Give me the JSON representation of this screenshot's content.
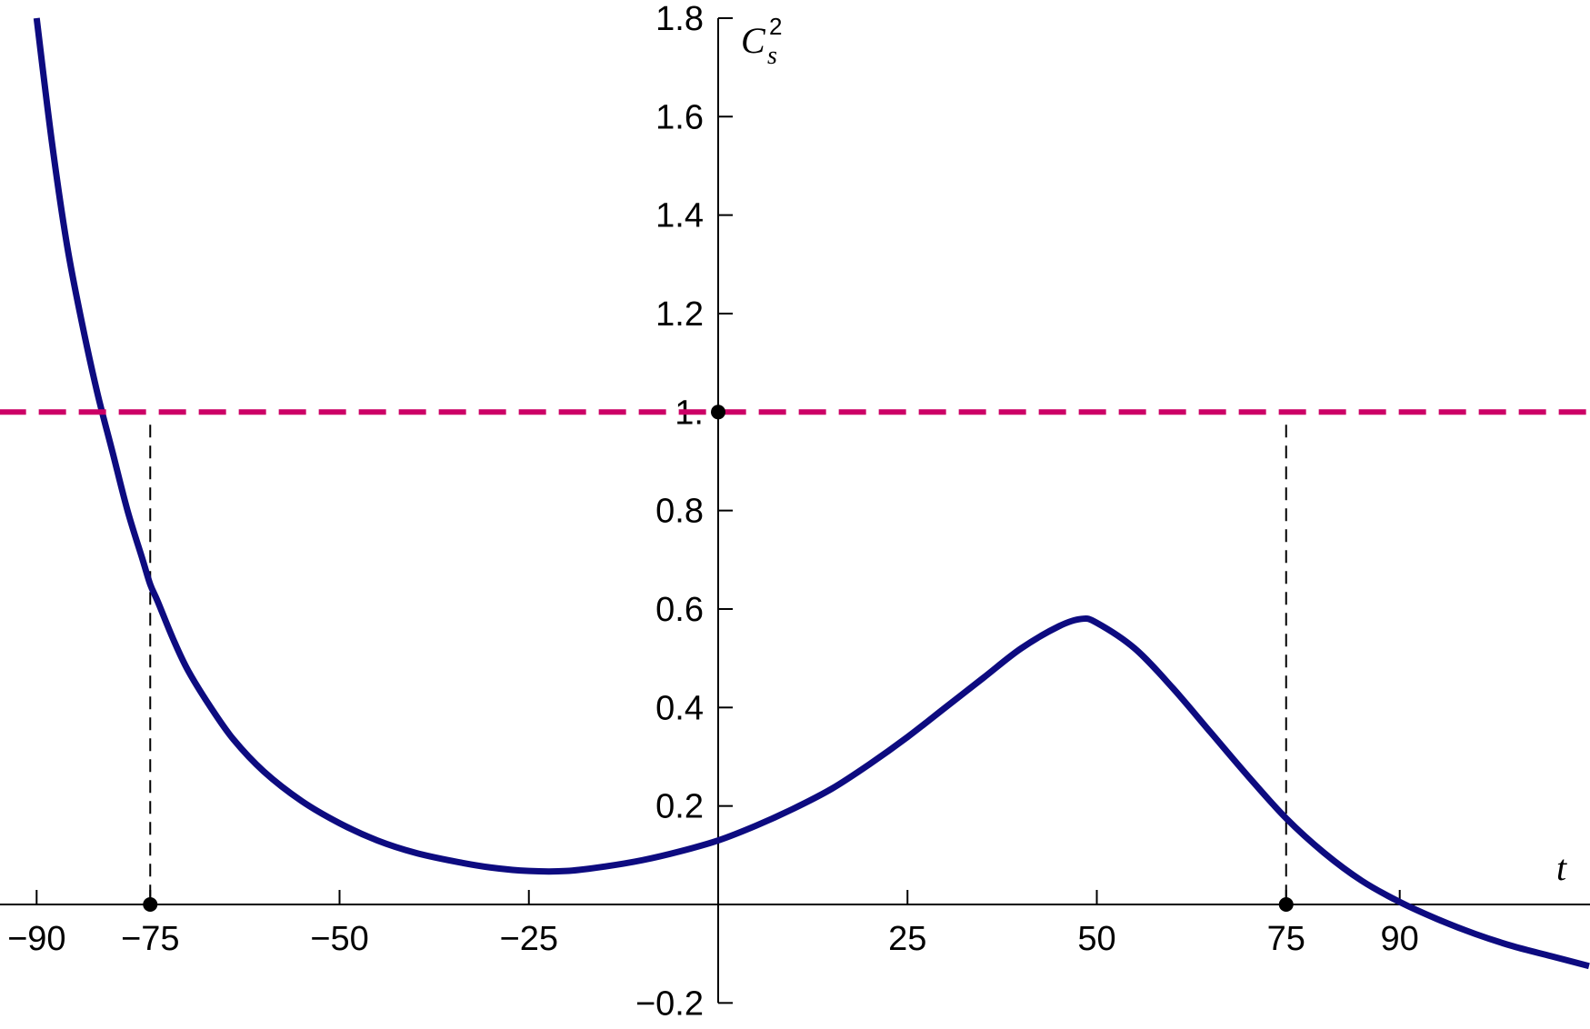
{
  "chart_data": {
    "type": "line",
    "xlabel": "t",
    "ylabel": {
      "base": "C",
      "sub": "s",
      "sup": "2"
    },
    "xlim": [
      -95,
      115
    ],
    "ylim": [
      -0.2,
      1.8
    ],
    "x_ticks": [
      {
        "value": -90,
        "label": "−90"
      },
      {
        "value": -75,
        "label": "−75"
      },
      {
        "value": -50,
        "label": "−50"
      },
      {
        "value": -25,
        "label": "−25"
      },
      {
        "value": 25,
        "label": "25"
      },
      {
        "value": 50,
        "label": "50"
      },
      {
        "value": 75,
        "label": "75"
      },
      {
        "value": 90,
        "label": "90"
      }
    ],
    "y_ticks": [
      {
        "value": -0.2,
        "label": "−0.2"
      },
      {
        "value": 0.2,
        "label": "0.2"
      },
      {
        "value": 0.4,
        "label": "0.4"
      },
      {
        "value": 0.6,
        "label": "0.6"
      },
      {
        "value": 0.8,
        "label": "0.8"
      },
      {
        "value": 1.0,
        "label": "1."
      },
      {
        "value": 1.2,
        "label": "1.2"
      },
      {
        "value": 1.4,
        "label": "1.4"
      },
      {
        "value": 1.6,
        "label": "1.6"
      },
      {
        "value": 1.8,
        "label": "1.8"
      }
    ],
    "series": [
      {
        "color": "#0d0b80",
        "x": [
          -90,
          -88,
          -86,
          -84,
          -82,
          -80,
          -78,
          -76,
          -75,
          -74,
          -72,
          -70,
          -67,
          -64,
          -60,
          -55,
          -50,
          -45,
          -40,
          -35,
          -30,
          -25,
          -20,
          -15,
          -10,
          -5,
          0,
          5,
          10,
          15,
          20,
          25,
          30,
          35,
          40,
          45,
          48,
          50,
          55,
          60,
          65,
          70,
          75,
          80,
          85,
          90,
          95,
          100,
          105,
          110,
          115
        ],
        "y": [
          1.8,
          1.55,
          1.34,
          1.18,
          1.04,
          0.92,
          0.8,
          0.7,
          0.65,
          0.615,
          0.54,
          0.475,
          0.4,
          0.335,
          0.27,
          0.21,
          0.165,
          0.13,
          0.105,
          0.088,
          0.075,
          0.068,
          0.068,
          0.077,
          0.09,
          0.108,
          0.13,
          0.16,
          0.195,
          0.235,
          0.285,
          0.34,
          0.4,
          0.46,
          0.52,
          0.565,
          0.58,
          0.572,
          0.52,
          0.44,
          0.35,
          0.26,
          0.175,
          0.105,
          0.048,
          0.005,
          -0.03,
          -0.06,
          -0.085,
          -0.105,
          -0.125
        ]
      },
      {
        "color": "#cc0066",
        "style": "dashed",
        "x": [
          -95,
          115
        ],
        "y": [
          1.0,
          1.0
        ]
      }
    ],
    "guides": [
      {
        "x": -75,
        "y_top": 1.0
      },
      {
        "x": 75,
        "y_top": 1.0
      }
    ],
    "points": [
      {
        "x": -75,
        "y": 0
      },
      {
        "x": 75,
        "y": 0
      },
      {
        "x": 0,
        "y": 1.0
      }
    ]
  }
}
